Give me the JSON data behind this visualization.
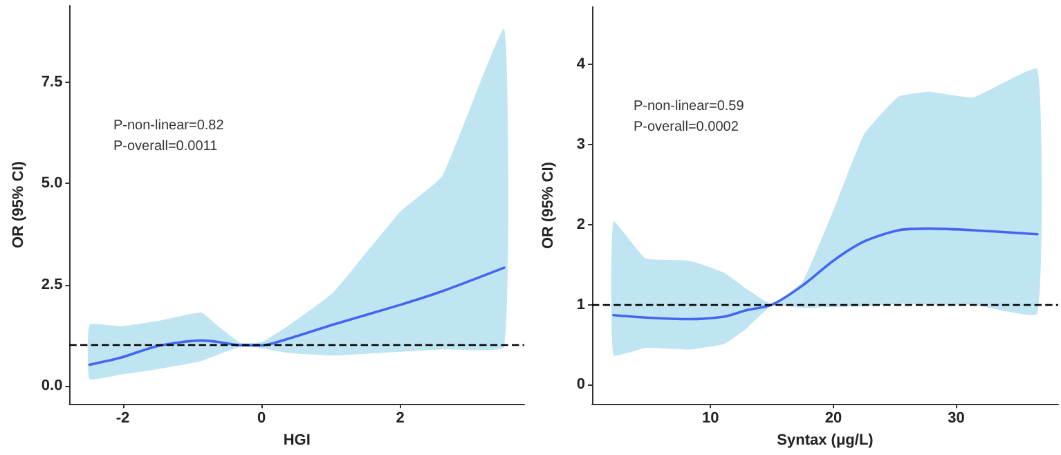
{
  "chart_data": [
    {
      "type": "line",
      "xlabel": "HGI",
      "ylabel": "OR (95% CI)",
      "xlim": [
        -2.77,
        3.79
      ],
      "ylim": [
        -0.45,
        9.4
      ],
      "xticks": [
        -2,
        0,
        2
      ],
      "yticks": [
        {
          "value": 0,
          "label": "0.0"
        },
        2.5,
        {
          "value": 5,
          "label": "5.0"
        },
        7.5
      ],
      "grid": false,
      "marker": "none",
      "line_style": "solid",
      "annotations": [
        "P-non-linear=0.82",
        "P-overall=0.0011"
      ],
      "ref_lines": [
        {
          "axis": "y",
          "value": 1,
          "line_style": "dashed",
          "color": "#000000"
        }
      ],
      "series": [
        {
          "color": "#4466ee",
          "x": [
            -2.48,
            -2.02,
            -1.5,
            -0.87,
            -0.61,
            -0.3,
            0,
            0.4,
            1.03,
            2,
            2.61,
            3.5
          ],
          "values": [
            0.52,
            0.7,
            0.98,
            1.12,
            1.08,
            1.0,
            1.0,
            1.17,
            1.51,
            2.0,
            2.34,
            2.92
          ],
          "lower": [
            0.17,
            0.28,
            0.41,
            0.61,
            0.78,
            0.97,
            0.93,
            0.81,
            0.75,
            0.84,
            0.9,
            0.97
          ],
          "upper": [
            1.51,
            1.47,
            1.6,
            1.81,
            1.45,
            1.06,
            1.08,
            1.5,
            2.3,
            4.3,
            5.19,
            8.82
          ]
        }
      ]
    },
    {
      "type": "line",
      "xlabel": "Syntax (μg/L)",
      "ylabel": "OR (95% CI)",
      "xlim": [
        0.36,
        38.3
      ],
      "ylim": [
        -0.24,
        4.72
      ],
      "xticks": [
        10,
        20,
        30
      ],
      "yticks": [
        0,
        1,
        2,
        3,
        4
      ],
      "grid": false,
      "marker": "none",
      "line_style": "solid",
      "annotations": [
        "P-non-linear=0.59",
        "P-overall=0.0002"
      ],
      "ref_lines": [
        {
          "axis": "y",
          "value": 1,
          "line_style": "dashed",
          "color": "#000000"
        }
      ],
      "series": [
        {
          "color": "#4466ee",
          "x": [
            2.1,
            4.7,
            8.26,
            11.1,
            12.9,
            15.0,
            17.5,
            20,
            22.5,
            25.3,
            27.8,
            31.4,
            36.6
          ],
          "values": [
            0.87,
            0.84,
            0.82,
            0.85,
            0.93,
            1.0,
            1.24,
            1.55,
            1.79,
            1.93,
            1.95,
            1.93,
            1.88
          ],
          "lower": [
            0.37,
            0.46,
            0.44,
            0.51,
            0.7,
            0.99,
            0.96,
            0.97,
            0.98,
            1.01,
            1.0,
            1.0,
            0.89
          ],
          "upper": [
            2.04,
            1.58,
            1.55,
            1.4,
            1.2,
            1.01,
            1.29,
            2.18,
            3.13,
            3.6,
            3.66,
            3.59,
            3.94
          ]
        }
      ]
    }
  ]
}
